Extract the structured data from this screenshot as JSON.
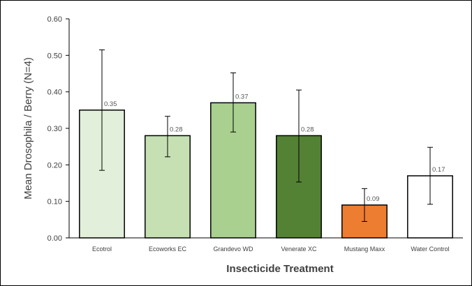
{
  "chart_data": {
    "type": "bar",
    "title": "",
    "xlabel": "Insecticide Treatment",
    "ylabel": "Mean Drosophila / Berry (N=4)",
    "ylim": [
      0,
      0.6
    ],
    "yticks": [
      "0.00",
      "0.10",
      "0.20",
      "0.30",
      "0.40",
      "0.50",
      "0.60"
    ],
    "grid": false,
    "legend": "none",
    "categories": [
      "Ecotrol",
      "Ecoworks EC",
      "Grandevo WD",
      "Venerate XC",
      "Mustang Maxx",
      "Water Control"
    ],
    "values": [
      0.35,
      0.28,
      0.37,
      0.28,
      0.09,
      0.17
    ],
    "data_labels": [
      "0.35",
      "0.28",
      "0.37",
      "0.28",
      "0.09",
      "0.17"
    ],
    "error_low": [
      0.185,
      0.222,
      0.29,
      0.153,
      0.045,
      0.092
    ],
    "error_high": [
      0.515,
      0.333,
      0.452,
      0.405,
      0.135,
      0.248
    ],
    "colors": [
      "#e2efda",
      "#c6e0b4",
      "#a9d08e",
      "#548235",
      "#ed7d31",
      "#ffffff"
    ]
  }
}
